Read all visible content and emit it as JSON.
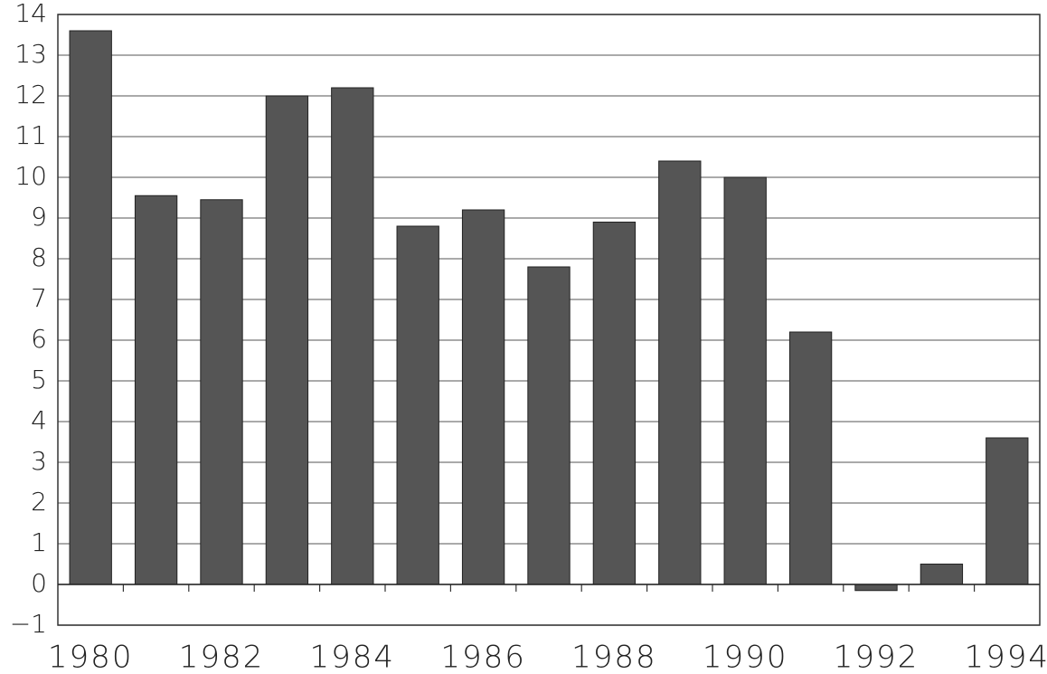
{
  "chart_data": {
    "type": "bar",
    "categories": [
      "1980",
      null,
      "1982",
      null,
      "1984",
      null,
      "1986",
      null,
      "1988",
      null,
      "1990",
      null,
      "1992",
      null,
      "1994"
    ],
    "values": [
      13.6,
      9.55,
      9.45,
      12.0,
      12.2,
      8.8,
      9.2,
      7.8,
      8.9,
      10.4,
      10.0,
      6.2,
      -0.15,
      0.5,
      3.6
    ],
    "color": "#555555",
    "ylim": [
      -1,
      14
    ],
    "yticks": [
      {
        "value": -1,
        "label": "−1"
      },
      0,
      1,
      2,
      3,
      4,
      5,
      6,
      7,
      8,
      9,
      10,
      11,
      12,
      13,
      14
    ],
    "grid": true
  }
}
